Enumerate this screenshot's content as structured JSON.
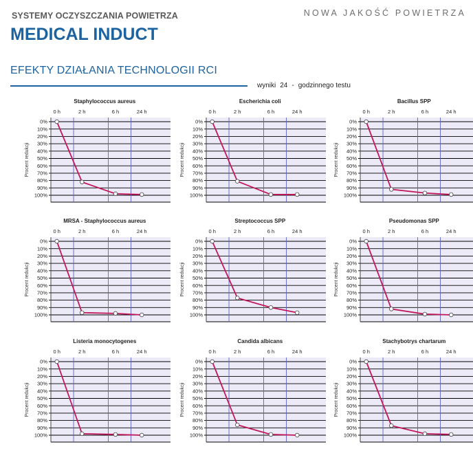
{
  "header": {
    "company": "SYSTEMY OCZYSZCZANIA POWIETRZA",
    "slogan": "NOWA JAKOŚĆ POWIETRZA",
    "product": "MEDICAL INDUCT",
    "section_title": "EFEKTY DZIAŁANIA TECHNOLOGII RCI",
    "results_word": "wyniki",
    "results_num": "24",
    "results_dash": "-",
    "results_suffix": "godzinnego testu"
  },
  "colors": {
    "plot_bg": "#eceaf7",
    "line": "#c2185b",
    "grid": "#000000",
    "vgrid": "#5a5fc8",
    "title_blue": "#1d63a0"
  },
  "chart_data": [
    {
      "type": "line",
      "title": "Staphylococcus aureus",
      "categories": [
        "0 h",
        "2 h",
        "6 h",
        "24 h"
      ],
      "ylabel": "Procent redukcji",
      "yticks": [
        "0%",
        "10%",
        "20%",
        "30%",
        "40%",
        "50%",
        "60%",
        "70%",
        "80%",
        "90%",
        "100%"
      ],
      "ylim": [
        0,
        100
      ],
      "values": [
        0,
        82,
        98,
        99
      ]
    },
    {
      "type": "line",
      "title": "Escherichia coli",
      "categories": [
        "0 h",
        "2 h",
        "6 h",
        "24 h"
      ],
      "ylabel": "Procent redukcji",
      "yticks": [
        "0%",
        "10%",
        "20%",
        "30%",
        "40%",
        "50%",
        "60%",
        "70%",
        "80%",
        "90%",
        "100%"
      ],
      "ylim": [
        0,
        100
      ],
      "values": [
        0,
        81,
        99,
        99
      ]
    },
    {
      "type": "line",
      "title": "Bacillus SPP",
      "categories": [
        "0 h",
        "2 h",
        "6 h",
        "24 h"
      ],
      "ylabel": "Procent redukcji",
      "yticks": [
        "0%",
        "10%",
        "20%",
        "30%",
        "40%",
        "50%",
        "60%",
        "70%",
        "80%",
        "90%",
        "100%"
      ],
      "ylim": [
        0,
        100
      ],
      "values": [
        0,
        92,
        97,
        99
      ]
    },
    {
      "type": "line",
      "title": "MRSA - Staphylococcus aureus",
      "categories": [
        "0 h",
        "2 h",
        "6 h",
        "24 h"
      ],
      "ylabel": "Procent redukcji",
      "yticks": [
        "0%",
        "10%",
        "20%",
        "30%",
        "40%",
        "50%",
        "60%",
        "70%",
        "80%",
        "90%",
        "100%"
      ],
      "ylim": [
        0,
        100
      ],
      "values": [
        0,
        97,
        98,
        100
      ]
    },
    {
      "type": "line",
      "title": "Streptococcus SPP",
      "categories": [
        "0 h",
        "2 h",
        "6 h",
        "24 h"
      ],
      "ylabel": "Procent redukcji",
      "yticks": [
        "0%",
        "10%",
        "20%",
        "30%",
        "40%",
        "50%",
        "60%",
        "70%",
        "80%",
        "90%",
        "100%"
      ],
      "ylim": [
        0,
        100
      ],
      "values": [
        0,
        77,
        90,
        97
      ]
    },
    {
      "type": "line",
      "title": "Pseudomonas SPP",
      "categories": [
        "0 h",
        "2 h",
        "6 h",
        "24 h"
      ],
      "ylabel": "Procent redukcji",
      "yticks": [
        "0%",
        "10%",
        "20%",
        "30%",
        "40%",
        "50%",
        "60%",
        "70%",
        "80%",
        "90%",
        "100%"
      ],
      "ylim": [
        0,
        100
      ],
      "values": [
        0,
        92,
        99,
        100
      ]
    },
    {
      "type": "line",
      "title": "Listeria monocytogenes",
      "categories": [
        "0 h",
        "2 h",
        "6 h",
        "24 h"
      ],
      "ylabel": "Procent redukcji",
      "yticks": [
        "0%",
        "10%",
        "20%",
        "30%",
        "40%",
        "50%",
        "60%",
        "70%",
        "80%",
        "90%",
        "100%"
      ],
      "ylim": [
        0,
        100
      ],
      "values": [
        0,
        98,
        99,
        100
      ]
    },
    {
      "type": "line",
      "title": "Candida albicans",
      "categories": [
        "0 h",
        "2 h",
        "6 h",
        "24 h"
      ],
      "ylabel": "Procent redukcji",
      "yticks": [
        "0%",
        "10%",
        "20%",
        "30%",
        "40%",
        "50%",
        "60%",
        "70%",
        "80%",
        "90%",
        "100%"
      ],
      "ylim": [
        0,
        100
      ],
      "values": [
        0,
        86,
        99,
        100
      ]
    },
    {
      "type": "line",
      "title": "Stachybotrys chartarum",
      "categories": [
        "0 h",
        "2 h",
        "6 h",
        "24 h"
      ],
      "ylabel": "Procent redukcji",
      "yticks": [
        "0%",
        "10%",
        "20%",
        "30%",
        "40%",
        "50%",
        "60%",
        "70%",
        "80%",
        "90%",
        "100%"
      ],
      "ylim": [
        0,
        100
      ],
      "values": [
        0,
        87,
        98,
        99
      ]
    }
  ]
}
